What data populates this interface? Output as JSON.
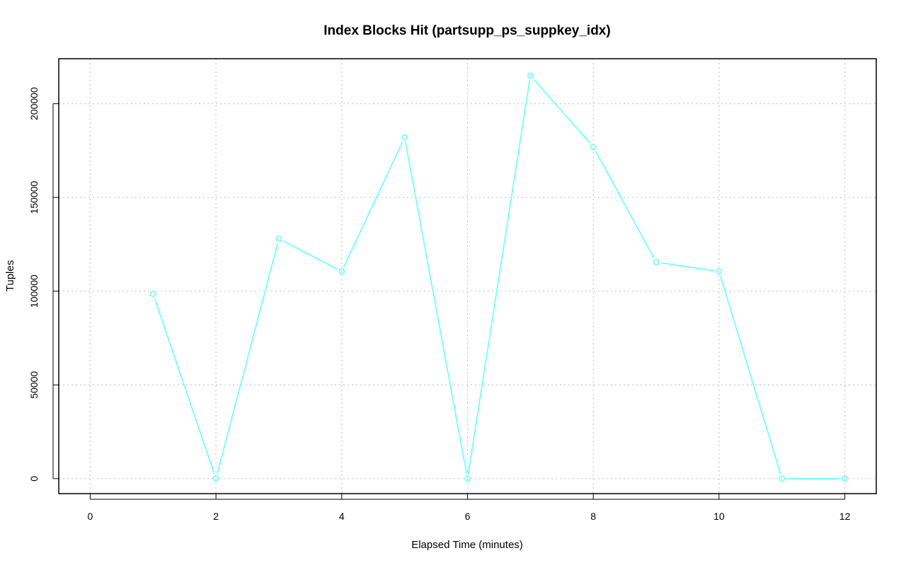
{
  "chart_data": {
    "type": "line",
    "title": "Index Blocks Hit (partsupp_ps_suppkey_idx)",
    "xlabel": "Elapsed Time (minutes)",
    "ylabel": "Tuples",
    "xlim": [
      -0.5,
      12.5
    ],
    "ylim": [
      -8000,
      224000
    ],
    "x_ticks": [
      0,
      2,
      4,
      6,
      8,
      10,
      12
    ],
    "x_tick_labels": [
      "0",
      "2",
      "4",
      "6",
      "8",
      "10",
      "12"
    ],
    "y_ticks": [
      0,
      50000,
      100000,
      150000,
      200000
    ],
    "y_tick_labels": [
      "0",
      "50000",
      "100000",
      "150000",
      "200000"
    ],
    "grid": true,
    "legend": "none",
    "series": [
      {
        "color": "#66ffff",
        "marker": "open-circle",
        "x": [
          1,
          2,
          3,
          4,
          5,
          6,
          7,
          8,
          9,
          10,
          11,
          12
        ],
        "values": [
          98500,
          0,
          128000,
          110500,
          182000,
          0,
          215000,
          177000,
          115500,
          110500,
          0,
          0
        ]
      }
    ]
  }
}
